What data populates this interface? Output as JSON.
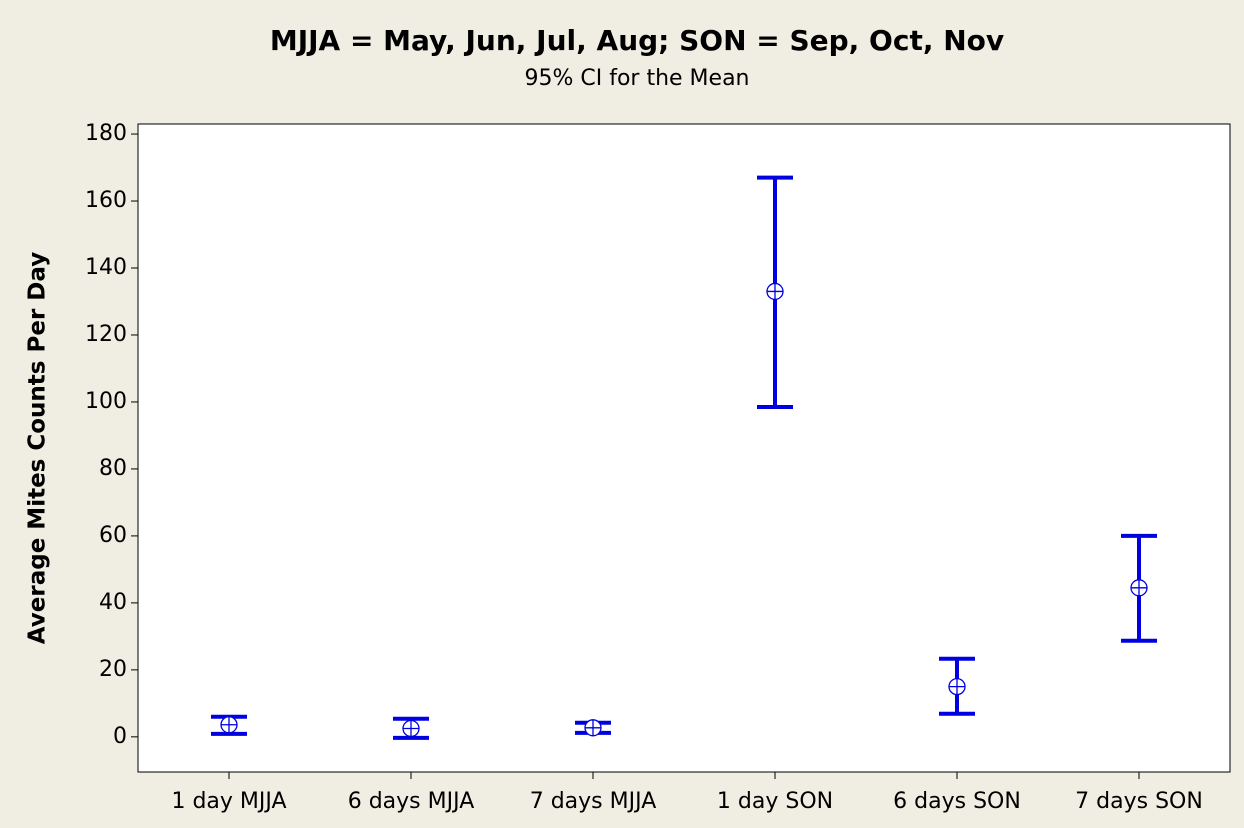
{
  "chart_data": {
    "type": "interval",
    "title": "MJJA = May, Jun, Jul, Aug; SON = Sep, Oct, Nov",
    "subtitle": "95% CI for the Mean",
    "y_label": "Average Mites Counts Per Day",
    "categories": [
      "1 day MJJA",
      "6 days MJJA",
      "7 days MJJA",
      "1 day SON",
      "6 days SON",
      "7 days SON"
    ],
    "series": [
      {
        "color": "#0000e0",
        "values": [
          3.6,
          2.5,
          2.7,
          133,
          15,
          44.5
        ],
        "lower": [
          0.9,
          -0.3,
          1.2,
          98.5,
          6.9,
          28.7
        ],
        "upper": [
          6,
          5.4,
          4.2,
          167,
          23.3,
          60
        ]
      }
    ],
    "ylim": [
      -10.5,
      183
    ],
    "yticks": [
      0,
      20,
      40,
      60,
      80,
      100,
      120,
      140,
      160,
      180
    ],
    "grid": false
  }
}
